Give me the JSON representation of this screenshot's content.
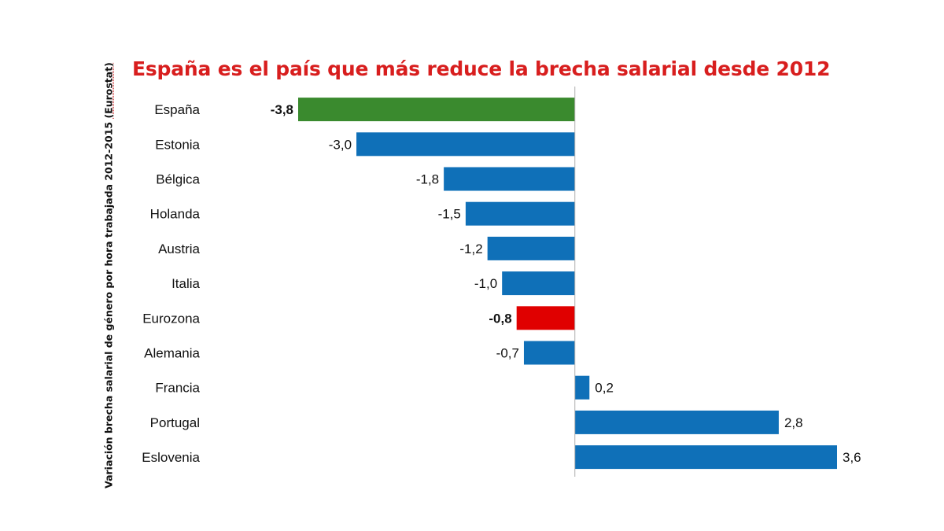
{
  "chart_data": {
    "type": "bar",
    "orientation": "horizontal",
    "title": "España es el país que más reduce la brecha salarial desde 2012",
    "ylabel": "Variación brecha salarial de género por hora trabajada 2012-2015",
    "ylabel_source": "(Eurostat)",
    "xlabel": "",
    "grid": false,
    "categories": [
      "España",
      "Estonia",
      "Bélgica",
      "Holanda",
      "Austria",
      "Italia",
      "Eurozona",
      "Alemania",
      "Francia",
      "Portugal",
      "Eslovenia"
    ],
    "values": [
      -3.8,
      -3.0,
      -1.8,
      -1.5,
      -1.2,
      -1.0,
      -0.8,
      -0.7,
      0.2,
      2.8,
      3.6
    ],
    "value_labels": [
      "-3,8",
      "-3,0",
      "-1,8",
      "-1,5",
      "-1,2",
      "-1,0",
      "-0,8",
      "-0,7",
      "0,2",
      "2,8",
      "3,6"
    ],
    "bold_labels": [
      true,
      false,
      false,
      false,
      false,
      false,
      true,
      false,
      false,
      false,
      false
    ],
    "bar_colors": [
      "#3a8a2e",
      "#0f70b8",
      "#0f70b8",
      "#0f70b8",
      "#0f70b8",
      "#0f70b8",
      "#e00000",
      "#0f70b8",
      "#0f70b8",
      "#0f70b8",
      "#0f70b8"
    ],
    "xlim": [
      -3.8,
      3.6
    ]
  }
}
